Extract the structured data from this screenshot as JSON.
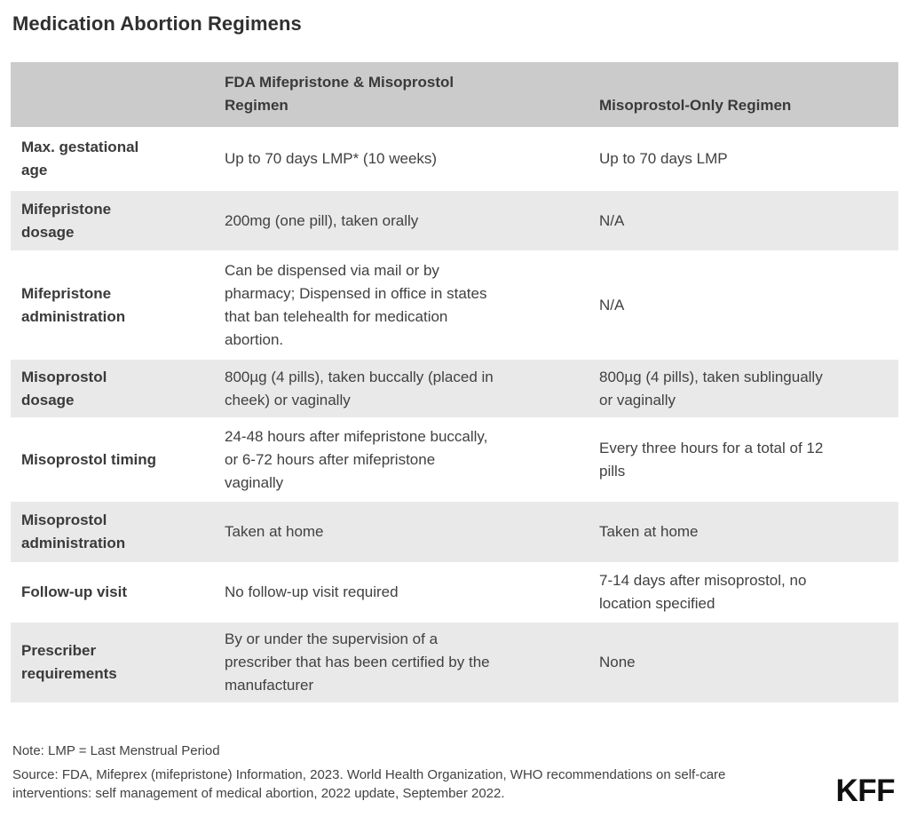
{
  "title": "Medication Abortion Regimens",
  "chart_data": {
    "type": "table",
    "title": "Medication Abortion Regimens",
    "columns": [
      "",
      "FDA Mifepristone & Misoprostol\nRegimen",
      "Misoprostol-Only Regimen"
    ],
    "rows": [
      {
        "label": "Max. gestational\nage",
        "fda": "Up to 70 days LMP* (10 weeks)",
        "miso": "Up to 70 days LMP"
      },
      {
        "label": "Mifepristone\ndosage",
        "fda": "200mg (one pill), taken orally",
        "miso": "N/A"
      },
      {
        "label": "Mifepristone\nadministration",
        "fda": "Can be dispensed via mail or by\npharmacy; Dispensed in office in states\nthat ban telehealth for medication\nabortion.",
        "miso": "N/A"
      },
      {
        "label": "Misoprostol\ndosage",
        "fda": "800µg (4 pills), taken buccally (placed in\ncheek) or vaginally",
        "miso": "800µg (4 pills), taken sublingually\nor vaginally"
      },
      {
        "label": "Misoprostol timing",
        "fda": "24-48 hours after mifepristone buccally,\nor 6-72 hours after mifepristone\nvaginally",
        "miso": "Every three hours for a total of 12\npills"
      },
      {
        "label": "Misoprostol\nadministration",
        "fda": "Taken at home",
        "miso": "Taken at home"
      },
      {
        "label": "Follow-up visit",
        "fda": "No follow-up visit required",
        "miso": "7-14 days after misoprostol, no\nlocation specified"
      },
      {
        "label": "Prescriber\nrequirements",
        "fda": "By or under the supervision of a\nprescriber that has been certified by the\nmanufacturer",
        "miso": "None"
      }
    ],
    "legend": "none",
    "grid": "alternating-row-shading"
  },
  "footer": {
    "note": "Note: LMP = Last Menstrual Period",
    "source": "Source: FDA, Mifeprex (mifepristone) Information, 2023. World Health Organization, WHO recommendations on self-care\ninterventions: self management of medical abortion, 2022 update, September 2022.",
    "logo": "KFF"
  },
  "colors": {
    "header_bg": "#cbcbcb",
    "alt_row_bg": "#e9e9e9",
    "body_text": "#414141",
    "title_text": "#303030",
    "logo_text": "#101010",
    "background": "#ffffff"
  }
}
